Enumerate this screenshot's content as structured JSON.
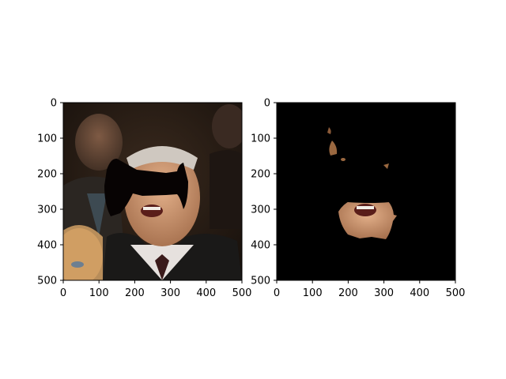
{
  "figure": {
    "panels": [
      {
        "name": "left",
        "description": "masked crowd photo",
        "x_ticks": [
          "0",
          "100",
          "200",
          "300",
          "400",
          "500"
        ],
        "y_ticks": [
          "0",
          "100",
          "200",
          "300",
          "400",
          "500"
        ],
        "x_range": [
          0,
          500
        ],
        "y_range": [
          0,
          500
        ]
      },
      {
        "name": "right",
        "description": "segmented skin region on black",
        "x_ticks": [
          "0",
          "100",
          "200",
          "300",
          "400",
          "500"
        ],
        "y_ticks": [
          "0",
          "100",
          "200",
          "300",
          "400",
          "500"
        ],
        "x_range": [
          0,
          500
        ],
        "y_range": [
          0,
          500
        ]
      }
    ]
  }
}
